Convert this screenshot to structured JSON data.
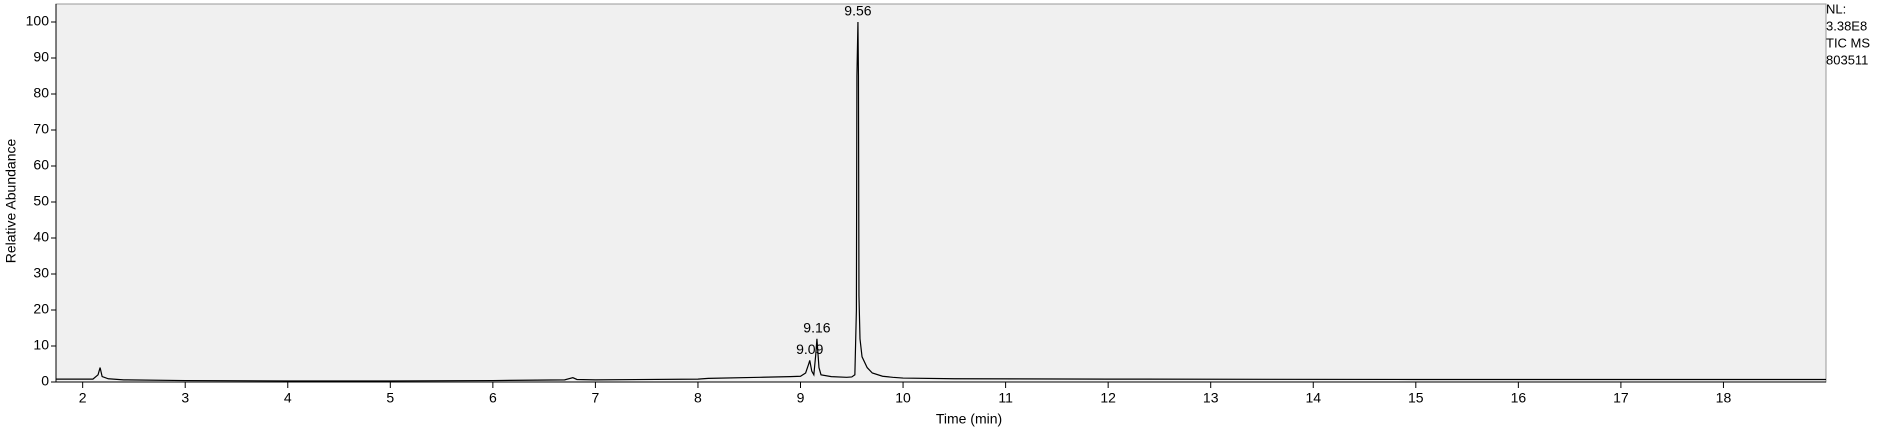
{
  "chart_data": {
    "type": "line",
    "x_label": "Time (min)",
    "y_label": "Relative Abundance",
    "info": [
      "NL:",
      "3.38E8",
      "TIC  MS",
      "803511"
    ],
    "x": [
      1.74,
      2.0,
      2.1,
      2.15,
      2.17,
      2.19,
      2.25,
      2.4,
      3,
      4,
      5,
      6,
      6.7,
      6.78,
      6.82,
      7,
      8,
      8.1,
      8.6,
      8.9,
      9.0,
      9.05,
      9.08,
      9.09,
      9.11,
      9.13,
      9.15,
      9.16,
      9.18,
      9.2,
      9.3,
      9.45,
      9.5,
      9.53,
      9.545,
      9.55,
      9.56,
      9.565,
      9.57,
      9.58,
      9.6,
      9.65,
      9.7,
      9.8,
      9.9,
      10,
      10.5,
      12,
      15,
      19
    ],
    "series": [
      {
        "name": "TIC",
        "color": "#000000",
        "values": [
          0.8,
          0.8,
          0.8,
          2,
          4,
          1.5,
          0.9,
          0.6,
          0.4,
          0.3,
          0.3,
          0.4,
          0.6,
          1.2,
          0.7,
          0.6,
          0.8,
          1,
          1.3,
          1.5,
          1.6,
          2.5,
          5,
          6,
          3,
          2,
          8,
          12,
          4,
          2,
          1.5,
          1.3,
          1.4,
          2,
          20,
          85,
          100,
          85,
          24,
          12,
          7,
          4,
          2.5,
          1.6,
          1.3,
          1.1,
          0.9,
          0.8,
          0.7,
          0.7
        ]
      }
    ],
    "annotations": [
      {
        "text": "9.09",
        "x": 9.09,
        "y": 6
      },
      {
        "text": "9.16",
        "x": 9.16,
        "y": 12
      },
      {
        "text": "9.56",
        "x": 9.56,
        "y": 100
      }
    ],
    "xlim": [
      1.74,
      19.0
    ],
    "ylim": [
      0,
      105
    ],
    "xticks": [
      2,
      3,
      4,
      5,
      6,
      7,
      8,
      9,
      10,
      11,
      12,
      13,
      14,
      15,
      16,
      17,
      18
    ],
    "yticks": [
      0,
      10,
      20,
      30,
      40,
      50,
      60,
      70,
      80,
      90,
      100
    ],
    "background": "#f0f0f0"
  }
}
